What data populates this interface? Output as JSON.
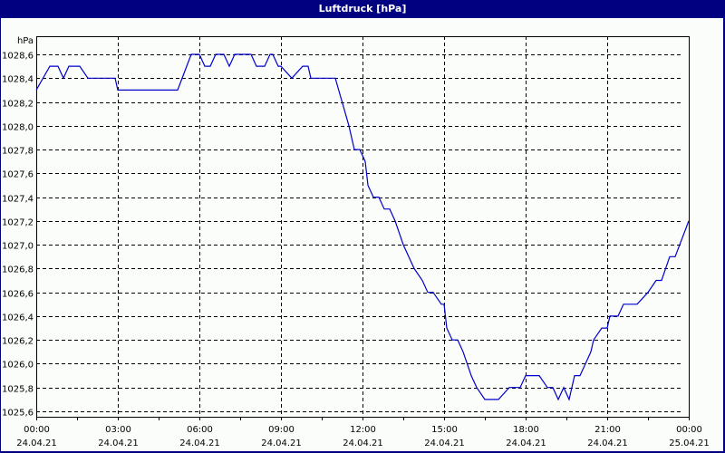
{
  "window": {
    "title": "Luftdruck [hPa]"
  },
  "colors": {
    "titlebar": "#000080",
    "background": "#fbfdfb",
    "line": "#0000cc",
    "grid": "#000000"
  },
  "chart_data": {
    "type": "line",
    "title": "Luftdruck [hPa]",
    "xlabel": "",
    "ylabel": "hPa",
    "ylim": [
      1025.6,
      1028.6
    ],
    "grid": true,
    "y_ticks": [
      "1028,6",
      "1028,4",
      "1028,2",
      "1028,0",
      "1027,8",
      "1027,6",
      "1027,4",
      "1027,2",
      "1027,0",
      "1026,8",
      "1026,6",
      "1026,4",
      "1026,2",
      "1026,0",
      "1025,8",
      "1025,6"
    ],
    "x_ticks": [
      {
        "time": "00:00",
        "date": "24.04.21"
      },
      {
        "time": "03:00",
        "date": "24.04.21"
      },
      {
        "time": "06:00",
        "date": "24.04.21"
      },
      {
        "time": "09:00",
        "date": "24.04.21"
      },
      {
        "time": "12:00",
        "date": "24.04.21"
      },
      {
        "time": "15:00",
        "date": "24.04.21"
      },
      {
        "time": "18:00",
        "date": "24.04.21"
      },
      {
        "time": "21:00",
        "date": "24.04.21"
      },
      {
        "time": "00:00",
        "date": "25.04.21"
      }
    ],
    "series": [
      {
        "name": "Luftdruck",
        "x_hours": [
          0,
          0.5,
          0.8,
          1.0,
          1.2,
          1.3,
          1.6,
          1.9,
          2.3,
          2.9,
          3.0,
          3.1,
          5.2,
          5.7,
          6.0,
          6.2,
          6.4,
          6.6,
          6.9,
          7.1,
          7.3,
          7.5,
          7.6,
          7.9,
          8.1,
          8.4,
          8.6,
          8.7,
          8.9,
          9.0,
          9.4,
          9.8,
          10.0,
          10.1,
          10.5,
          11.0,
          11.5,
          11.7,
          11.9,
          12.1,
          12.2,
          12.4,
          12.6,
          12.8,
          13.0,
          13.2,
          13.5,
          13.7,
          13.9,
          14.2,
          14.4,
          14.6,
          14.9,
          15.0,
          15.1,
          15.3,
          15.5,
          15.7,
          16.0,
          16.2,
          16.5,
          16.8,
          17.0,
          17.4,
          17.8,
          18.0,
          18.5,
          18.8,
          19.0,
          19.2,
          19.4,
          19.6,
          19.8,
          20.0,
          20.2,
          20.4,
          20.5,
          20.8,
          21.0,
          21.1,
          21.4,
          21.6,
          21.9,
          22.1,
          22.5,
          22.8,
          23.0,
          23.3,
          23.5,
          24.0
        ],
        "values": [
          1028.3,
          1028.5,
          1028.5,
          1028.4,
          1028.5,
          1028.5,
          1028.5,
          1028.4,
          1028.4,
          1028.4,
          1028.3,
          1028.3,
          1028.3,
          1028.6,
          1028.6,
          1028.5,
          1028.5,
          1028.6,
          1028.6,
          1028.5,
          1028.6,
          1028.6,
          1028.6,
          1028.6,
          1028.5,
          1028.5,
          1028.6,
          1028.6,
          1028.5,
          1028.5,
          1028.4,
          1028.5,
          1028.5,
          1028.4,
          1028.4,
          1028.4,
          1028.0,
          1027.8,
          1027.8,
          1027.7,
          1027.5,
          1027.4,
          1027.4,
          1027.3,
          1027.3,
          1027.2,
          1027.0,
          1026.9,
          1026.8,
          1026.7,
          1026.6,
          1026.6,
          1026.5,
          1026.5,
          1026.3,
          1026.2,
          1026.2,
          1026.1,
          1025.9,
          1025.8,
          1025.7,
          1025.7,
          1025.7,
          1025.8,
          1025.8,
          1025.9,
          1025.9,
          1025.8,
          1025.8,
          1025.7,
          1025.8,
          1025.7,
          1025.9,
          1025.9,
          1026.0,
          1026.1,
          1026.2,
          1026.3,
          1026.3,
          1026.4,
          1026.4,
          1026.5,
          1026.5,
          1026.5,
          1026.6,
          1026.7,
          1026.7,
          1026.9,
          1026.9,
          1027.2
        ]
      }
    ]
  }
}
